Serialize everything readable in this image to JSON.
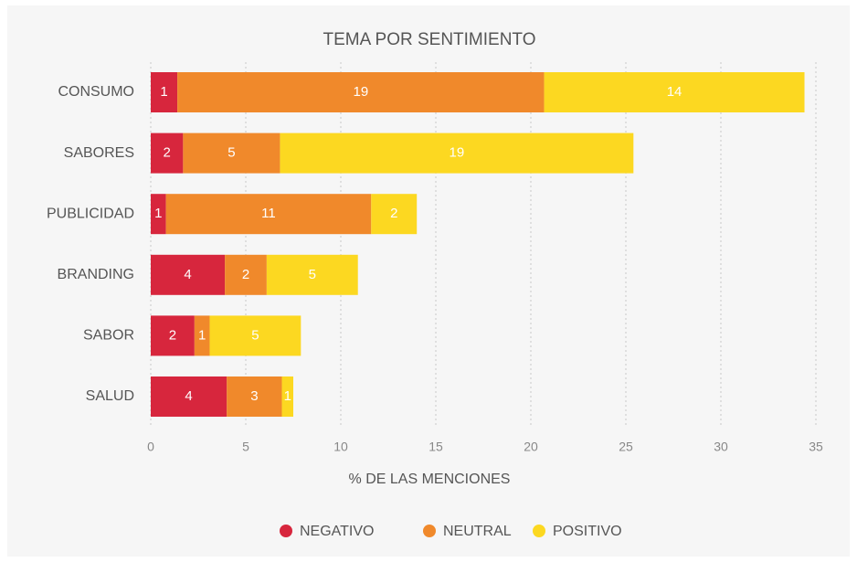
{
  "chart_data": {
    "type": "stacked_bar_horizontal",
    "title": "TEMA POR SENTIMIENTO",
    "categories": [
      "CONSUMO",
      "SABORES",
      "PUBLICIDAD",
      "BRANDING",
      "SABOR",
      "SALUD"
    ],
    "series": [
      {
        "name": "NEGATIVO",
        "color": "#d7263d",
        "values": [
          1.4,
          1.7,
          0.8,
          3.9,
          2.3,
          4.0
        ],
        "value_labels": [
          "1",
          "2",
          "1",
          "4",
          "2",
          "4"
        ]
      },
      {
        "name": "NEUTRAL",
        "color": "#f0892b",
        "values": [
          19.3,
          5.1,
          10.8,
          2.2,
          0.8,
          2.9
        ],
        "value_labels": [
          "19",
          "5",
          "11",
          "2",
          "1",
          "3"
        ]
      },
      {
        "name": "POSITIVO",
        "color": "#fcd821",
        "values": [
          13.7,
          18.6,
          2.4,
          4.8,
          4.8,
          0.6
        ],
        "value_labels": [
          "14",
          "19",
          "2",
          "5",
          "5",
          "1"
        ]
      }
    ],
    "xlabel": "% DE LAS MENCIONES",
    "xlim": [
      0,
      35
    ],
    "xticks": [
      0,
      5,
      10,
      15,
      20,
      25,
      30,
      35
    ],
    "grid": true,
    "legend": "bottom"
  }
}
